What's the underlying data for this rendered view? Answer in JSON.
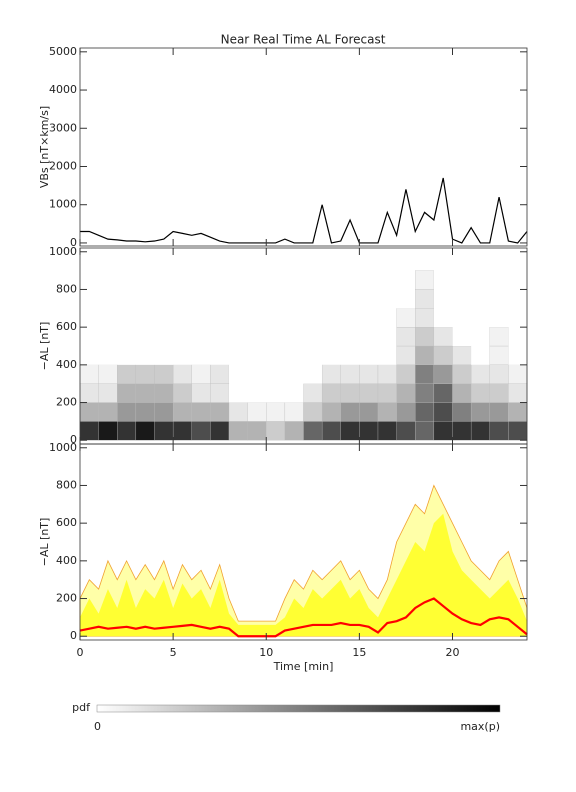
{
  "chart_data": [
    {
      "type": "line",
      "title": "Near Real Time AL Forecast",
      "ylabel": "VBs [nT×km/s]",
      "color": "#000000",
      "x": [
        0,
        0.5,
        1,
        1.5,
        2,
        2.5,
        3,
        3.5,
        4,
        4.5,
        5,
        5.5,
        6,
        6.5,
        7,
        7.5,
        8,
        8.5,
        9,
        9.5,
        10,
        10.5,
        11,
        11.5,
        12,
        12.5,
        13,
        13.5,
        14,
        14.5,
        15,
        15.5,
        16,
        16.5,
        17,
        17.5,
        18,
        18.5,
        19,
        19.5,
        20,
        20.5,
        21,
        21.5,
        22,
        22.5,
        23,
        23.5,
        24
      ],
      "values": [
        300,
        300,
        200,
        100,
        80,
        50,
        50,
        30,
        50,
        100,
        300,
        250,
        200,
        250,
        150,
        50,
        0,
        0,
        0,
        0,
        0,
        0,
        100,
        0,
        0,
        0,
        1000,
        0,
        50,
        600,
        0,
        0,
        0,
        800,
        200,
        1400,
        300,
        800,
        600,
        1700,
        100,
        0,
        400,
        0,
        0,
        1200,
        50,
        0,
        300
      ],
      "xlim": [
        0,
        24
      ],
      "xticks": [
        0,
        5,
        10,
        15,
        20
      ],
      "ylim": [
        -80,
        5100
      ],
      "yticks": [
        0,
        1000,
        2000,
        3000,
        4000,
        5000
      ]
    },
    {
      "type": "heatmap",
      "ylabel": "−AL [nT]",
      "xbins": [
        0,
        1,
        2,
        3,
        4,
        5,
        6,
        7,
        8,
        9,
        10,
        11,
        12,
        13,
        14,
        15,
        16,
        17,
        18,
        19,
        20,
        21,
        22,
        23,
        24
      ],
      "ybins": [
        0,
        100,
        200,
        300,
        400,
        500,
        600,
        700,
        800,
        900
      ],
      "z": [
        [
          0.8,
          0.9,
          0.8,
          0.9,
          0.8,
          0.8,
          0.7,
          0.8,
          0.3,
          0.3,
          0.2,
          0.3,
          0.6,
          0.7,
          0.8,
          0.8,
          0.8,
          0.7,
          0.6,
          0.8,
          0.8,
          0.8,
          0.7,
          0.7
        ],
        [
          0.3,
          0.3,
          0.4,
          0.4,
          0.4,
          0.3,
          0.3,
          0.3,
          0.1,
          0.05,
          0.05,
          0.05,
          0.2,
          0.3,
          0.4,
          0.4,
          0.3,
          0.4,
          0.6,
          0.7,
          0.5,
          0.4,
          0.4,
          0.3
        ],
        [
          0.1,
          0.1,
          0.3,
          0.3,
          0.3,
          0.2,
          0.1,
          0.1,
          0,
          0,
          0,
          0,
          0.1,
          0.2,
          0.2,
          0.2,
          0.2,
          0.3,
          0.5,
          0.6,
          0.3,
          0.2,
          0.2,
          0.1
        ],
        [
          0.05,
          0.05,
          0.2,
          0.2,
          0.2,
          0.1,
          0.05,
          0.1,
          0,
          0,
          0,
          0,
          0,
          0.1,
          0.1,
          0.1,
          0.1,
          0.2,
          0.5,
          0.4,
          0.2,
          0.1,
          0.1,
          0.05
        ],
        [
          0,
          0,
          0,
          0,
          0,
          0,
          0,
          0,
          0,
          0,
          0,
          0,
          0,
          0,
          0,
          0,
          0,
          0.1,
          0.3,
          0.2,
          0.1,
          0,
          0.05,
          0
        ],
        [
          0,
          0,
          0,
          0,
          0,
          0,
          0,
          0,
          0,
          0,
          0,
          0,
          0,
          0,
          0,
          0,
          0,
          0.1,
          0.2,
          0.1,
          0,
          0,
          0.05,
          0
        ],
        [
          0,
          0,
          0,
          0,
          0,
          0,
          0,
          0,
          0,
          0,
          0,
          0,
          0,
          0,
          0,
          0,
          0,
          0.05,
          0.1,
          0,
          0,
          0,
          0,
          0
        ],
        [
          0,
          0,
          0,
          0,
          0,
          0,
          0,
          0,
          0,
          0,
          0,
          0,
          0,
          0,
          0,
          0,
          0,
          0,
          0.1,
          0,
          0,
          0,
          0,
          0
        ],
        [
          0,
          0,
          0,
          0,
          0,
          0,
          0,
          0,
          0,
          0,
          0,
          0,
          0,
          0,
          0,
          0,
          0,
          0,
          0.05,
          0,
          0,
          0,
          0,
          0
        ]
      ],
      "xlim": [
        0,
        24
      ],
      "xticks": [
        0,
        5,
        10,
        15,
        20
      ],
      "ylim": [
        -20,
        1020
      ],
      "yticks": [
        0,
        200,
        400,
        600,
        800,
        1000
      ],
      "colorbar": {
        "label": "pdf",
        "min_label": "0",
        "max_label": "max(p)"
      }
    },
    {
      "type": "band",
      "ylabel": "−AL [nT]",
      "xlabel": "Time [min]",
      "x": [
        0,
        0.5,
        1,
        1.5,
        2,
        2.5,
        3,
        3.5,
        4,
        4.5,
        5,
        5.5,
        6,
        6.5,
        7,
        7.5,
        8,
        8.5,
        9,
        9.5,
        10,
        10.5,
        11,
        11.5,
        12,
        12.5,
        13,
        13.5,
        14,
        14.5,
        15,
        15.5,
        16,
        16.5,
        17,
        17.5,
        18,
        18.5,
        19,
        19.5,
        20,
        20.5,
        21,
        21.5,
        22,
        22.5,
        23,
        23.5,
        24
      ],
      "series": [
        {
          "color": "#ff0000",
          "values": [
            30,
            40,
            50,
            40,
            45,
            50,
            40,
            50,
            40,
            45,
            50,
            55,
            60,
            50,
            40,
            50,
            40,
            0,
            0,
            0,
            0,
            0,
            30,
            40,
            50,
            60,
            60,
            60,
            70,
            60,
            60,
            50,
            20,
            70,
            80,
            100,
            150,
            180,
            200,
            160,
            120,
            90,
            70,
            60,
            90,
            100,
            90,
            50,
            10
          ]
        },
        {
          "color": "#ffff33",
          "values": [
            100,
            200,
            120,
            250,
            150,
            300,
            150,
            250,
            200,
            300,
            150,
            280,
            200,
            250,
            150,
            300,
            120,
            60,
            60,
            60,
            60,
            60,
            100,
            200,
            150,
            250,
            200,
            250,
            300,
            200,
            250,
            150,
            100,
            200,
            300,
            400,
            500,
            450,
            600,
            650,
            450,
            350,
            300,
            250,
            200,
            250,
            300,
            200,
            80
          ]
        },
        {
          "color": "#ffffa8",
          "edge": "#f0a030",
          "values": [
            200,
            300,
            250,
            400,
            300,
            400,
            300,
            380,
            300,
            400,
            250,
            380,
            300,
            350,
            250,
            380,
            200,
            80,
            80,
            80,
            80,
            80,
            200,
            300,
            250,
            350,
            300,
            350,
            400,
            300,
            350,
            250,
            200,
            300,
            500,
            600,
            700,
            650,
            800,
            700,
            600,
            500,
            400,
            350,
            300,
            400,
            450,
            300,
            150
          ]
        }
      ],
      "xlim": [
        0,
        24
      ],
      "xticks": [
        0,
        5,
        10,
        15,
        20
      ],
      "ylim": [
        -20,
        1020
      ],
      "yticks": [
        0,
        200,
        400,
        600,
        800,
        1000
      ]
    }
  ]
}
